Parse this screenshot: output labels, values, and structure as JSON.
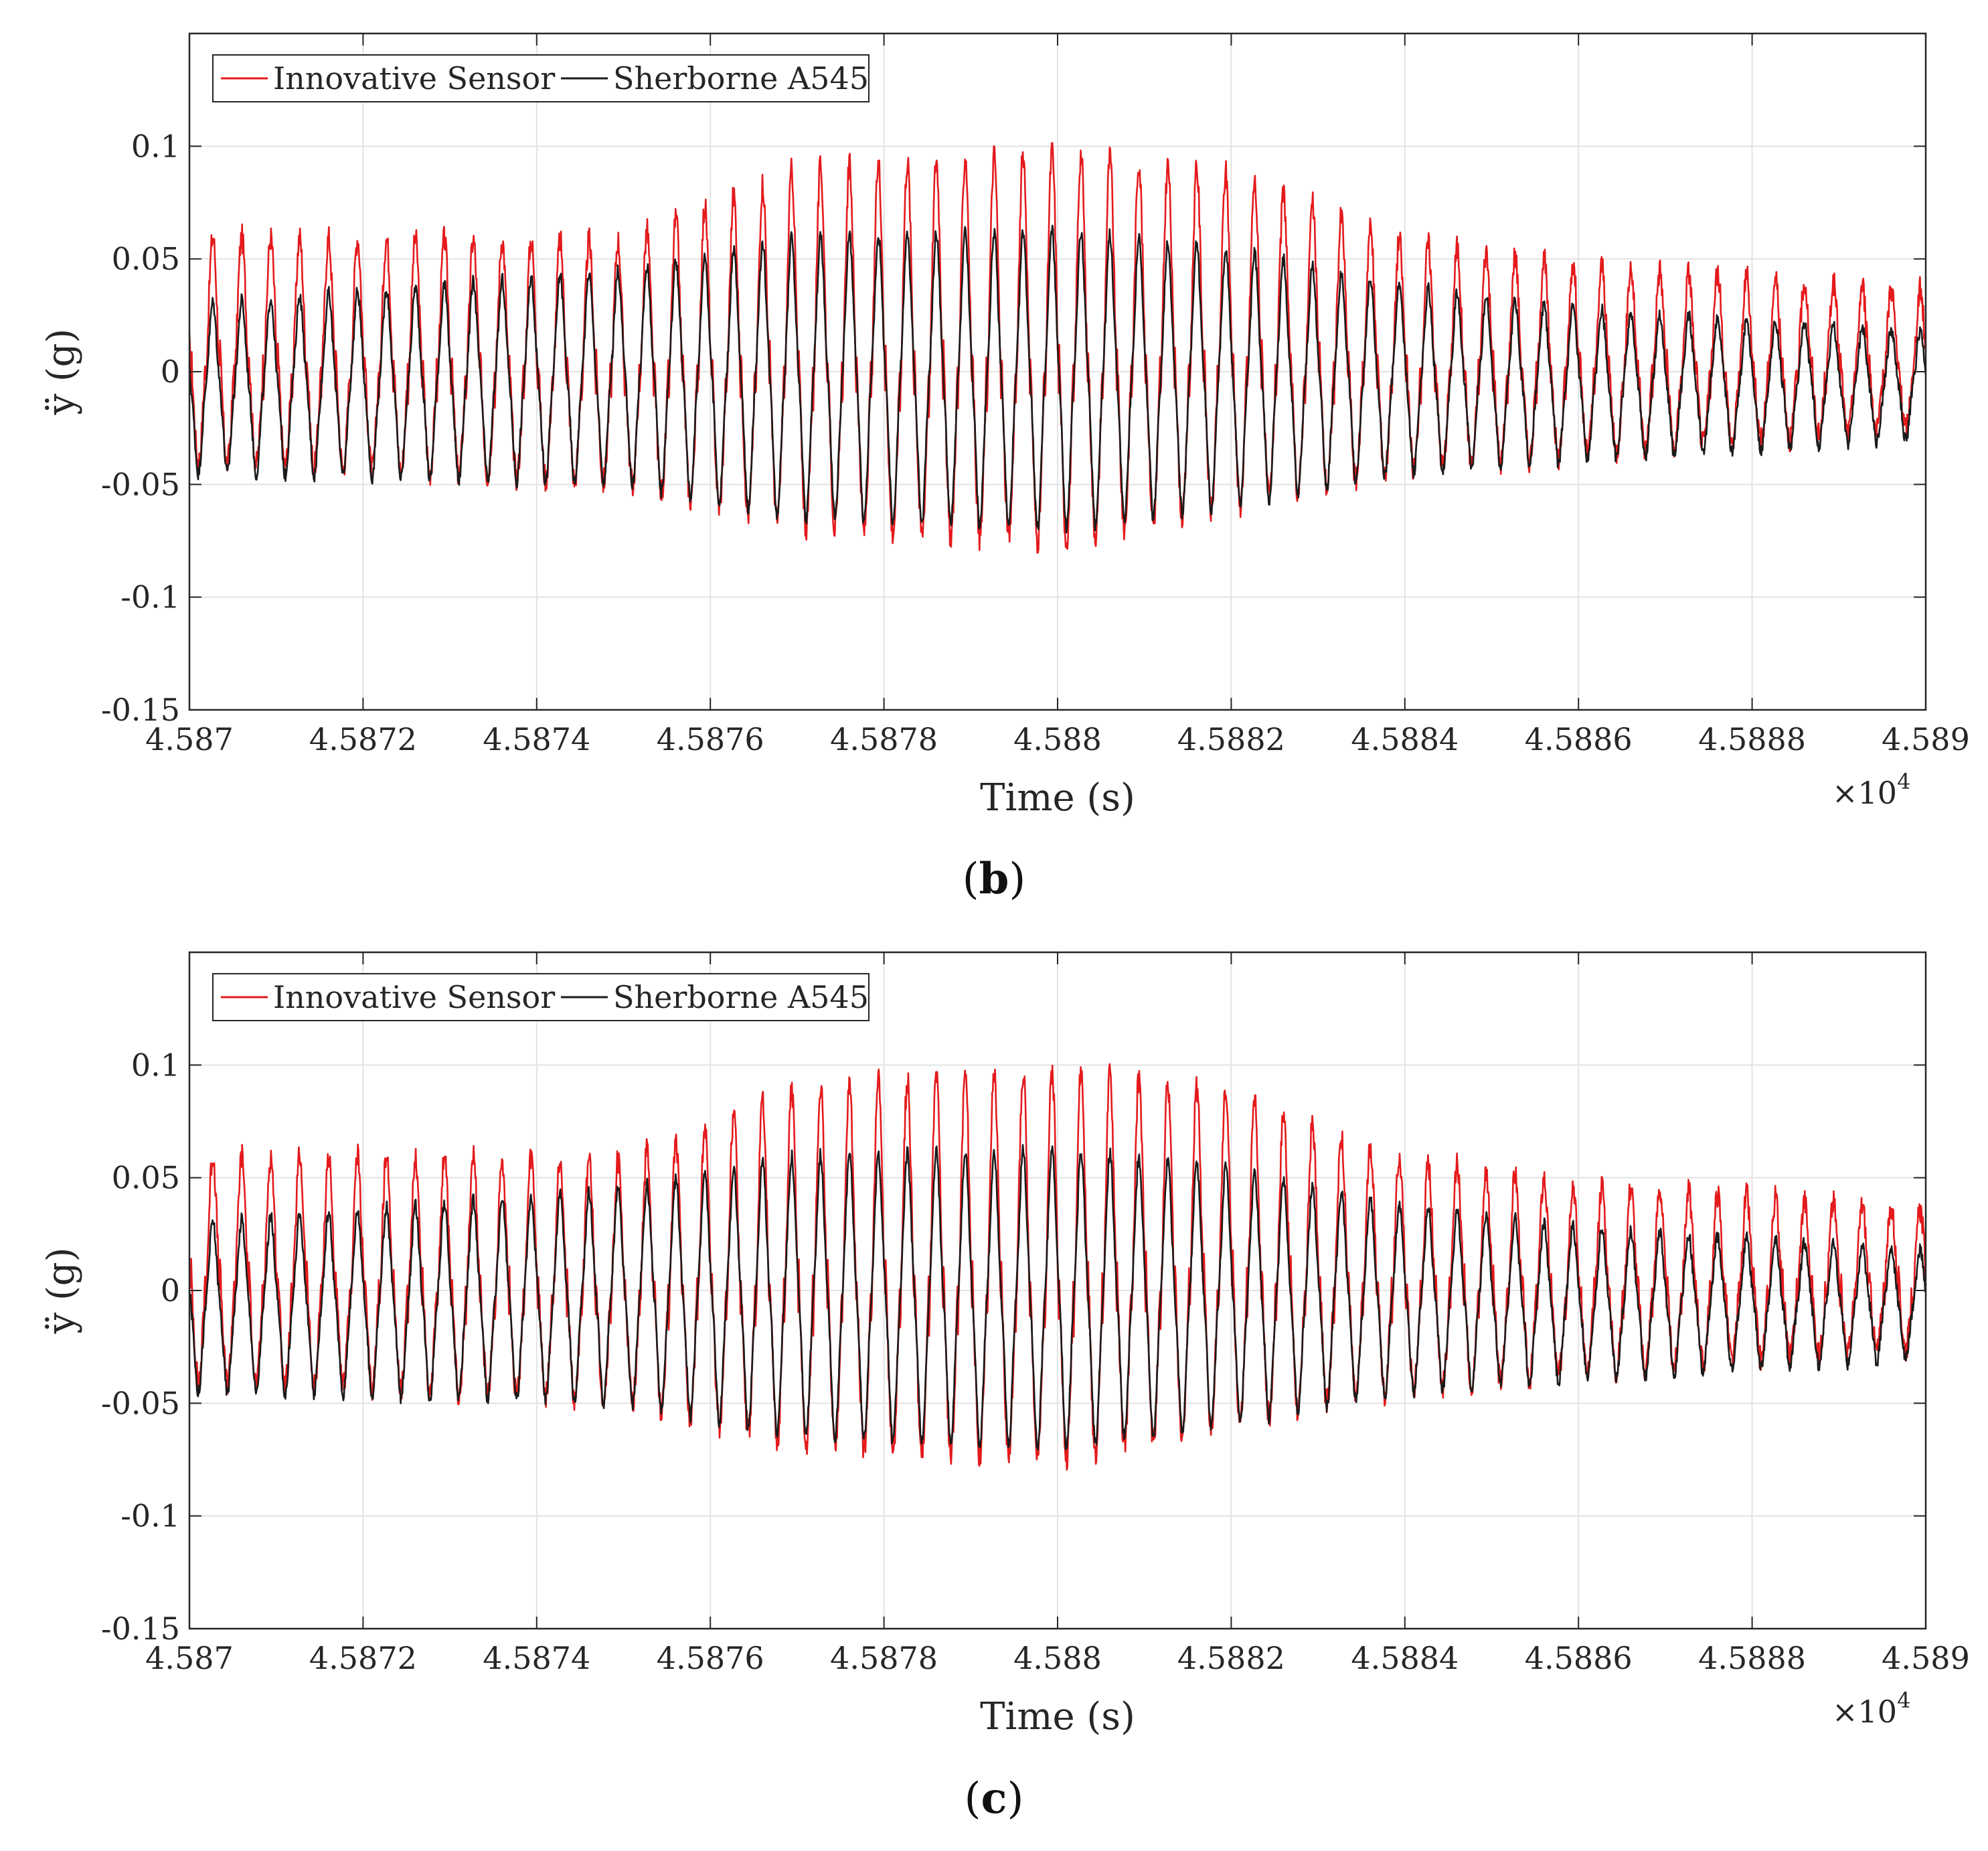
{
  "colors": {
    "series_1": "#e41a1c",
    "series_2": "#1a1a1a",
    "grid": "#e3e3e3",
    "axis": "#262626"
  },
  "chart_data": [
    {
      "type": "line",
      "panel_label": "b",
      "xlabel": "Time (s)",
      "ylabel": "ÿ (g)",
      "x_multiplier_text": "×10",
      "x_multiplier_exp": "4",
      "xlim": [
        4.587,
        4.589
      ],
      "ylim": [
        -0.15,
        0.15
      ],
      "x_ticks": [
        4.587,
        4.5872,
        4.5874,
        4.5876,
        4.5878,
        4.588,
        4.5882,
        4.5884,
        4.5886,
        4.5888,
        4.589
      ],
      "x_tick_labels": [
        "4.587",
        "4.5872",
        "4.5874",
        "4.5876",
        "4.5878",
        "4.588",
        "4.5882",
        "4.5884",
        "4.5886",
        "4.5888",
        "4.589"
      ],
      "y_ticks": [
        -0.15,
        -0.1,
        -0.05,
        0,
        0.05,
        0.1
      ],
      "y_tick_labels": [
        "-0.15",
        "-0.1",
        "-0.05",
        "0",
        "0.05",
        "0.1"
      ],
      "grid": true,
      "legend_position": "top-left",
      "series": [
        {
          "name": "Innovative Sensor",
          "color": "#e41a1c",
          "cycles": 60,
          "peak_envelope": [
            [
              4.587,
              0.06
            ],
            [
              4.5875,
              0.058
            ],
            [
              4.5877,
              0.09
            ],
            [
              4.588,
              0.098
            ],
            [
              4.5882,
              0.088
            ],
            [
              4.5884,
              0.058
            ],
            [
              4.5886,
              0.048
            ],
            [
              4.589,
              0.036
            ]
          ],
          "trough_envelope": [
            [
              4.587,
              -0.048
            ],
            [
              4.5875,
              -0.058
            ],
            [
              4.5877,
              -0.082
            ],
            [
              4.588,
              -0.09
            ],
            [
              4.5882,
              -0.072
            ],
            [
              4.5884,
              -0.052
            ],
            [
              4.5886,
              -0.044
            ],
            [
              4.589,
              -0.03
            ]
          ]
        },
        {
          "name": "Sherborne A545",
          "color": "#1a1a1a",
          "cycles": 60,
          "peak_envelope": [
            [
              4.587,
              0.03
            ],
            [
              4.5875,
              0.045
            ],
            [
              4.5877,
              0.06
            ],
            [
              4.588,
              0.063
            ],
            [
              4.5882,
              0.055
            ],
            [
              4.5884,
              0.038
            ],
            [
              4.5886,
              0.028
            ],
            [
              4.589,
              0.018
            ]
          ],
          "trough_envelope": [
            [
              4.587,
              -0.045
            ],
            [
              4.5875,
              -0.05
            ],
            [
              4.5877,
              -0.065
            ],
            [
              4.588,
              -0.07
            ],
            [
              4.5882,
              -0.06
            ],
            [
              4.5884,
              -0.045
            ],
            [
              4.5886,
              -0.04
            ],
            [
              4.589,
              -0.03
            ]
          ]
        }
      ]
    },
    {
      "type": "line",
      "panel_label": "c",
      "xlabel": "Time (s)",
      "ylabel": "ÿ (g)",
      "x_multiplier_text": "×10",
      "x_multiplier_exp": "4",
      "xlim": [
        4.587,
        4.589
      ],
      "ylim": [
        -0.15,
        0.15
      ],
      "x_ticks": [
        4.587,
        4.5872,
        4.5874,
        4.5876,
        4.5878,
        4.588,
        4.5882,
        4.5884,
        4.5886,
        4.5888,
        4.589
      ],
      "x_tick_labels": [
        "4.587",
        "4.5872",
        "4.5874",
        "4.5876",
        "4.5878",
        "4.588",
        "4.5882",
        "4.5884",
        "4.5886",
        "4.5888",
        "4.589"
      ],
      "y_ticks": [
        -0.15,
        -0.1,
        -0.05,
        0,
        0.05,
        0.1
      ],
      "y_tick_labels": [
        "-0.15",
        "-0.1",
        "-0.05",
        "0",
        "0.05",
        "0.1"
      ],
      "grid": true,
      "legend_position": "top-left",
      "series": [
        {
          "name": "Innovative Sensor",
          "color": "#e41a1c",
          "cycles": 60,
          "peak_envelope": [
            [
              4.587,
              0.06
            ],
            [
              4.5875,
              0.058
            ],
            [
              4.5877,
              0.09
            ],
            [
              4.588,
              0.098
            ],
            [
              4.5882,
              0.088
            ],
            [
              4.5884,
              0.058
            ],
            [
              4.5886,
              0.048
            ],
            [
              4.589,
              0.036
            ]
          ],
          "trough_envelope": [
            [
              4.587,
              -0.048
            ],
            [
              4.5875,
              -0.058
            ],
            [
              4.5877,
              -0.082
            ],
            [
              4.588,
              -0.09
            ],
            [
              4.5882,
              -0.072
            ],
            [
              4.5884,
              -0.052
            ],
            [
              4.5886,
              -0.044
            ],
            [
              4.589,
              -0.03
            ]
          ]
        },
        {
          "name": "Sherborne A545",
          "color": "#1a1a1a",
          "cycles": 60,
          "peak_envelope": [
            [
              4.587,
              0.03
            ],
            [
              4.5875,
              0.045
            ],
            [
              4.5877,
              0.06
            ],
            [
              4.588,
              0.063
            ],
            [
              4.5882,
              0.055
            ],
            [
              4.5884,
              0.038
            ],
            [
              4.5886,
              0.028
            ],
            [
              4.589,
              0.018
            ]
          ],
          "trough_envelope": [
            [
              4.587,
              -0.045
            ],
            [
              4.5875,
              -0.05
            ],
            [
              4.5877,
              -0.065
            ],
            [
              4.588,
              -0.07
            ],
            [
              4.5882,
              -0.06
            ],
            [
              4.5884,
              -0.045
            ],
            [
              4.5886,
              -0.04
            ],
            [
              4.589,
              -0.03
            ]
          ]
        }
      ]
    }
  ]
}
